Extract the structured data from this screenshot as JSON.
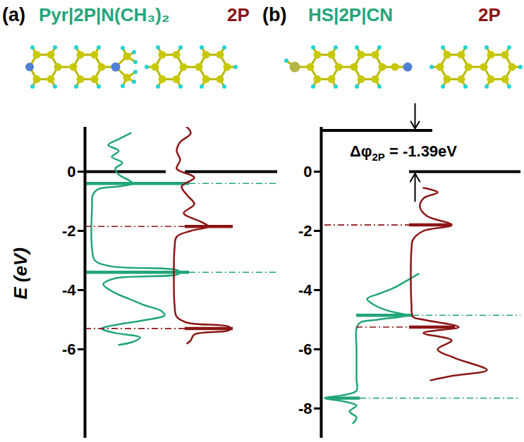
{
  "chart_data": [
    {
      "type": "line",
      "label": "(a)",
      "y_label": "E (eV)",
      "ylim": [
        -9,
        1.5
      ],
      "yticks": [
        -6,
        -4,
        -2,
        0
      ],
      "tick_labels": "y",
      "fermi_levels": [
        0,
        0
      ],
      "series": [
        {
          "name": "Pyr|2P|N(CH₃)₂",
          "color": "#22a57a",
          "levels": [
            -0.4,
            -3.4
          ],
          "E": [
            1.3,
            1.1,
            0.9,
            0.7,
            0.5,
            0.3,
            0.1,
            -0.1,
            -0.3,
            -0.4,
            -0.5,
            -0.6,
            -0.8,
            -1.2,
            -2.0,
            -2.6,
            -3.0,
            -3.2,
            -3.35,
            -3.45,
            -3.6,
            -3.8,
            -4.1,
            -4.3,
            -4.5,
            -4.7,
            -4.85,
            -5.0,
            -5.2,
            -5.3,
            -5.45,
            -5.6,
            -5.75,
            -5.85
          ],
          "dos": [
            57,
            40,
            25,
            40,
            30,
            45,
            35,
            40,
            55,
            60,
            40,
            10,
            3,
            2,
            1,
            2,
            6,
            30,
            125,
            125,
            35,
            18,
            35,
            55,
            75,
            100,
            105,
            80,
            30,
            15,
            35,
            70,
            60,
            40
          ]
        },
        {
          "name": "2P",
          "color": "#8b1515",
          "levels": [
            -1.85,
            -5.3
          ],
          "E": [
            1.6,
            1.3,
            1.0,
            0.7,
            0.4,
            0.1,
            -0.2,
            -0.5,
            -0.8,
            -1.1,
            -1.4,
            -1.7,
            -1.85,
            -2.0,
            -2.2,
            -2.6,
            -3.5,
            -4.5,
            -4.9,
            -5.1,
            -5.25,
            -5.35,
            -5.5,
            -5.7,
            -5.8
          ],
          "dos": [
            15,
            25,
            10,
            5,
            10,
            5,
            30,
            12,
            20,
            30,
            15,
            40,
            50,
            25,
            5,
            2,
            1,
            2,
            5,
            20,
            80,
            80,
            30,
            25,
            20
          ]
        }
      ]
    },
    {
      "type": "line",
      "label": "(b)",
      "ylim": [
        -9,
        1.5
      ],
      "yticks": [
        -8,
        -6,
        -4,
        -2,
        0
      ],
      "tick_labels": "y",
      "fermi_levels": [
        1.39,
        0
      ],
      "annotation": {
        "symbol": "Δφ",
        "subscript": "2P",
        "text": " = -1.39eV"
      },
      "series": [
        {
          "name": "HS|2P|CN",
          "color": "#22a57a",
          "levels": [
            -4.85,
            -7.65
          ],
          "E": [
            -3.45,
            -3.7,
            -3.9,
            -4.1,
            -4.3,
            -4.5,
            -4.7,
            -4.85,
            -5.0,
            -5.1,
            -5.3,
            -6.0,
            -7.0,
            -7.4,
            -7.55,
            -7.65,
            -7.75,
            -7.9,
            -8.1,
            -8.3,
            -8.5
          ],
          "dos": [
            88,
            70,
            55,
            35,
            15,
            25,
            45,
            70,
            30,
            5,
            0,
            0,
            0,
            0,
            -20,
            -45,
            -20,
            0,
            -10,
            0,
            -5
          ]
        },
        {
          "name": "2P",
          "color": "#8b1515",
          "levels": [
            -1.8,
            -5.25
          ],
          "E": [
            -0.55,
            -0.7,
            -0.9,
            -1.2,
            -1.5,
            -1.8,
            -2.0,
            -2.3,
            -2.6,
            -3.5,
            -4.5,
            -4.9,
            -5.0,
            -5.25,
            -5.45,
            -5.7,
            -6.0,
            -6.3,
            -6.7,
            -6.9,
            -7.05
          ],
          "dos": [
            20,
            40,
            20,
            15,
            25,
            60,
            20,
            5,
            3,
            2,
            3,
            5,
            20,
            70,
            20,
            60,
            40,
            65,
            110,
            60,
            30
          ]
        }
      ]
    }
  ]
}
